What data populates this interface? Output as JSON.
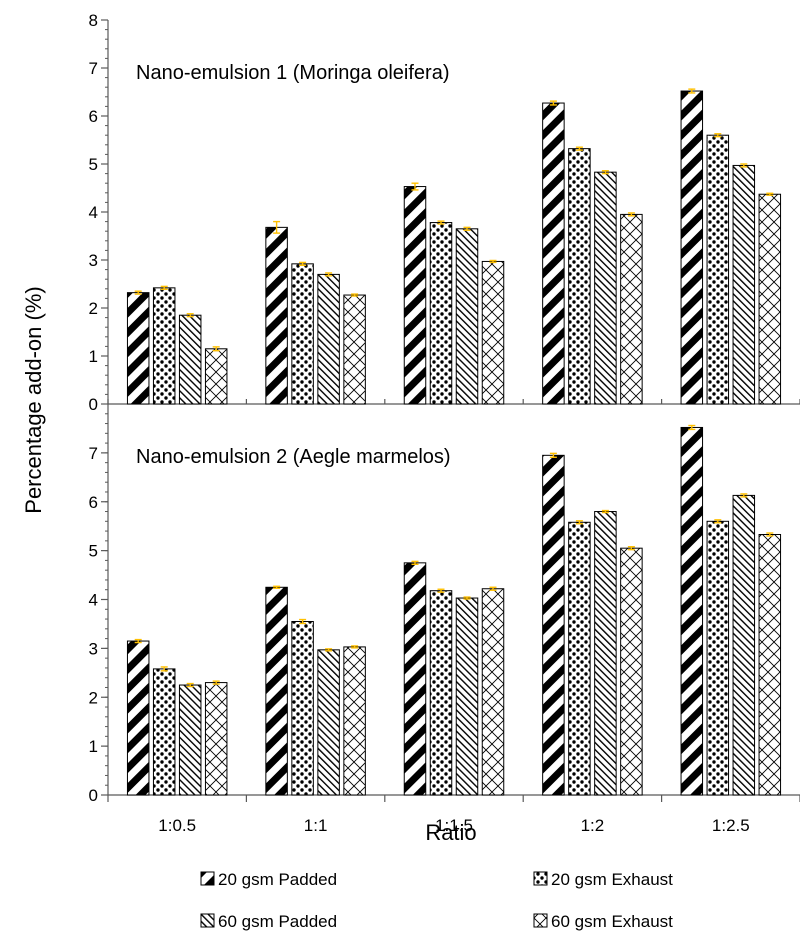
{
  "chart_data": [
    {
      "type": "bar",
      "title": "Nano-emulsion 1 (Moringa oleifera)",
      "categories": [
        "1:0.5",
        "1:1",
        "1:1.5",
        "1:2",
        "1:2.5"
      ],
      "ylim": [
        0,
        8
      ],
      "yticks": [
        0,
        1,
        2,
        3,
        4,
        5,
        6,
        7,
        8
      ],
      "grid": false,
      "error_bars": true,
      "series": [
        {
          "name": "20 gsm Padded",
          "values": [
            2.32,
            3.68,
            4.53,
            6.27,
            6.52
          ],
          "errors": [
            0.03,
            0.12,
            0.07,
            0.04,
            0.04
          ]
        },
        {
          "name": "20 gsm Exhaust",
          "values": [
            2.42,
            2.92,
            3.78,
            5.32,
            5.6
          ],
          "errors": [
            0.03,
            0.03,
            0.03,
            0.03,
            0.03
          ]
        },
        {
          "name": "60 gsm Padded",
          "values": [
            1.85,
            2.7,
            3.65,
            4.83,
            4.97
          ],
          "errors": [
            0.03,
            0.03,
            0.03,
            0.03,
            0.03
          ]
        },
        {
          "name": "60 gsm Exhaust",
          "values": [
            1.15,
            2.27,
            2.97,
            3.95,
            4.37
          ],
          "errors": [
            0.04,
            0.02,
            0.02,
            0.03,
            0.02
          ]
        }
      ]
    },
    {
      "type": "bar",
      "title": "Nano-emulsion 2 (Aegle marmelos)",
      "categories": [
        "1:0.5",
        "1:1",
        "1:1.5",
        "1:2",
        "1:2.5"
      ],
      "ylim": [
        0,
        8
      ],
      "yticks": [
        0,
        1,
        2,
        3,
        4,
        5,
        6,
        7
      ],
      "grid": false,
      "error_bars": true,
      "series": [
        {
          "name": "20 gsm Padded",
          "values": [
            3.15,
            4.25,
            4.75,
            6.95,
            7.52
          ],
          "errors": [
            0.03,
            0.02,
            0.03,
            0.04,
            0.04
          ]
        },
        {
          "name": "20 gsm Exhaust",
          "values": [
            2.58,
            3.55,
            4.18,
            5.58,
            5.6
          ],
          "errors": [
            0.04,
            0.04,
            0.03,
            0.03,
            0.03
          ]
        },
        {
          "name": "60 gsm Padded",
          "values": [
            2.25,
            2.97,
            4.03,
            5.8,
            6.13
          ],
          "errors": [
            0.03,
            0.02,
            0.02,
            0.02,
            0.03
          ]
        },
        {
          "name": "60 gsm Exhaust",
          "values": [
            2.3,
            3.03,
            4.22,
            5.05,
            5.33
          ],
          "errors": [
            0.03,
            0.02,
            0.03,
            0.03,
            0.03
          ]
        }
      ]
    }
  ],
  "axes": {
    "xlabel": "Ratio",
    "ylabel": "Percentage add-on (%)"
  },
  "legend": {
    "placement": "bottom",
    "items": [
      "20 gsm Padded",
      "20 gsm Exhaust",
      "60 gsm Padded",
      "60 gsm Exhaust"
    ]
  },
  "colors": {
    "bar_outline": "#000000",
    "error_bar": "#FFC000",
    "axis": "#595959",
    "text": "#000000"
  }
}
